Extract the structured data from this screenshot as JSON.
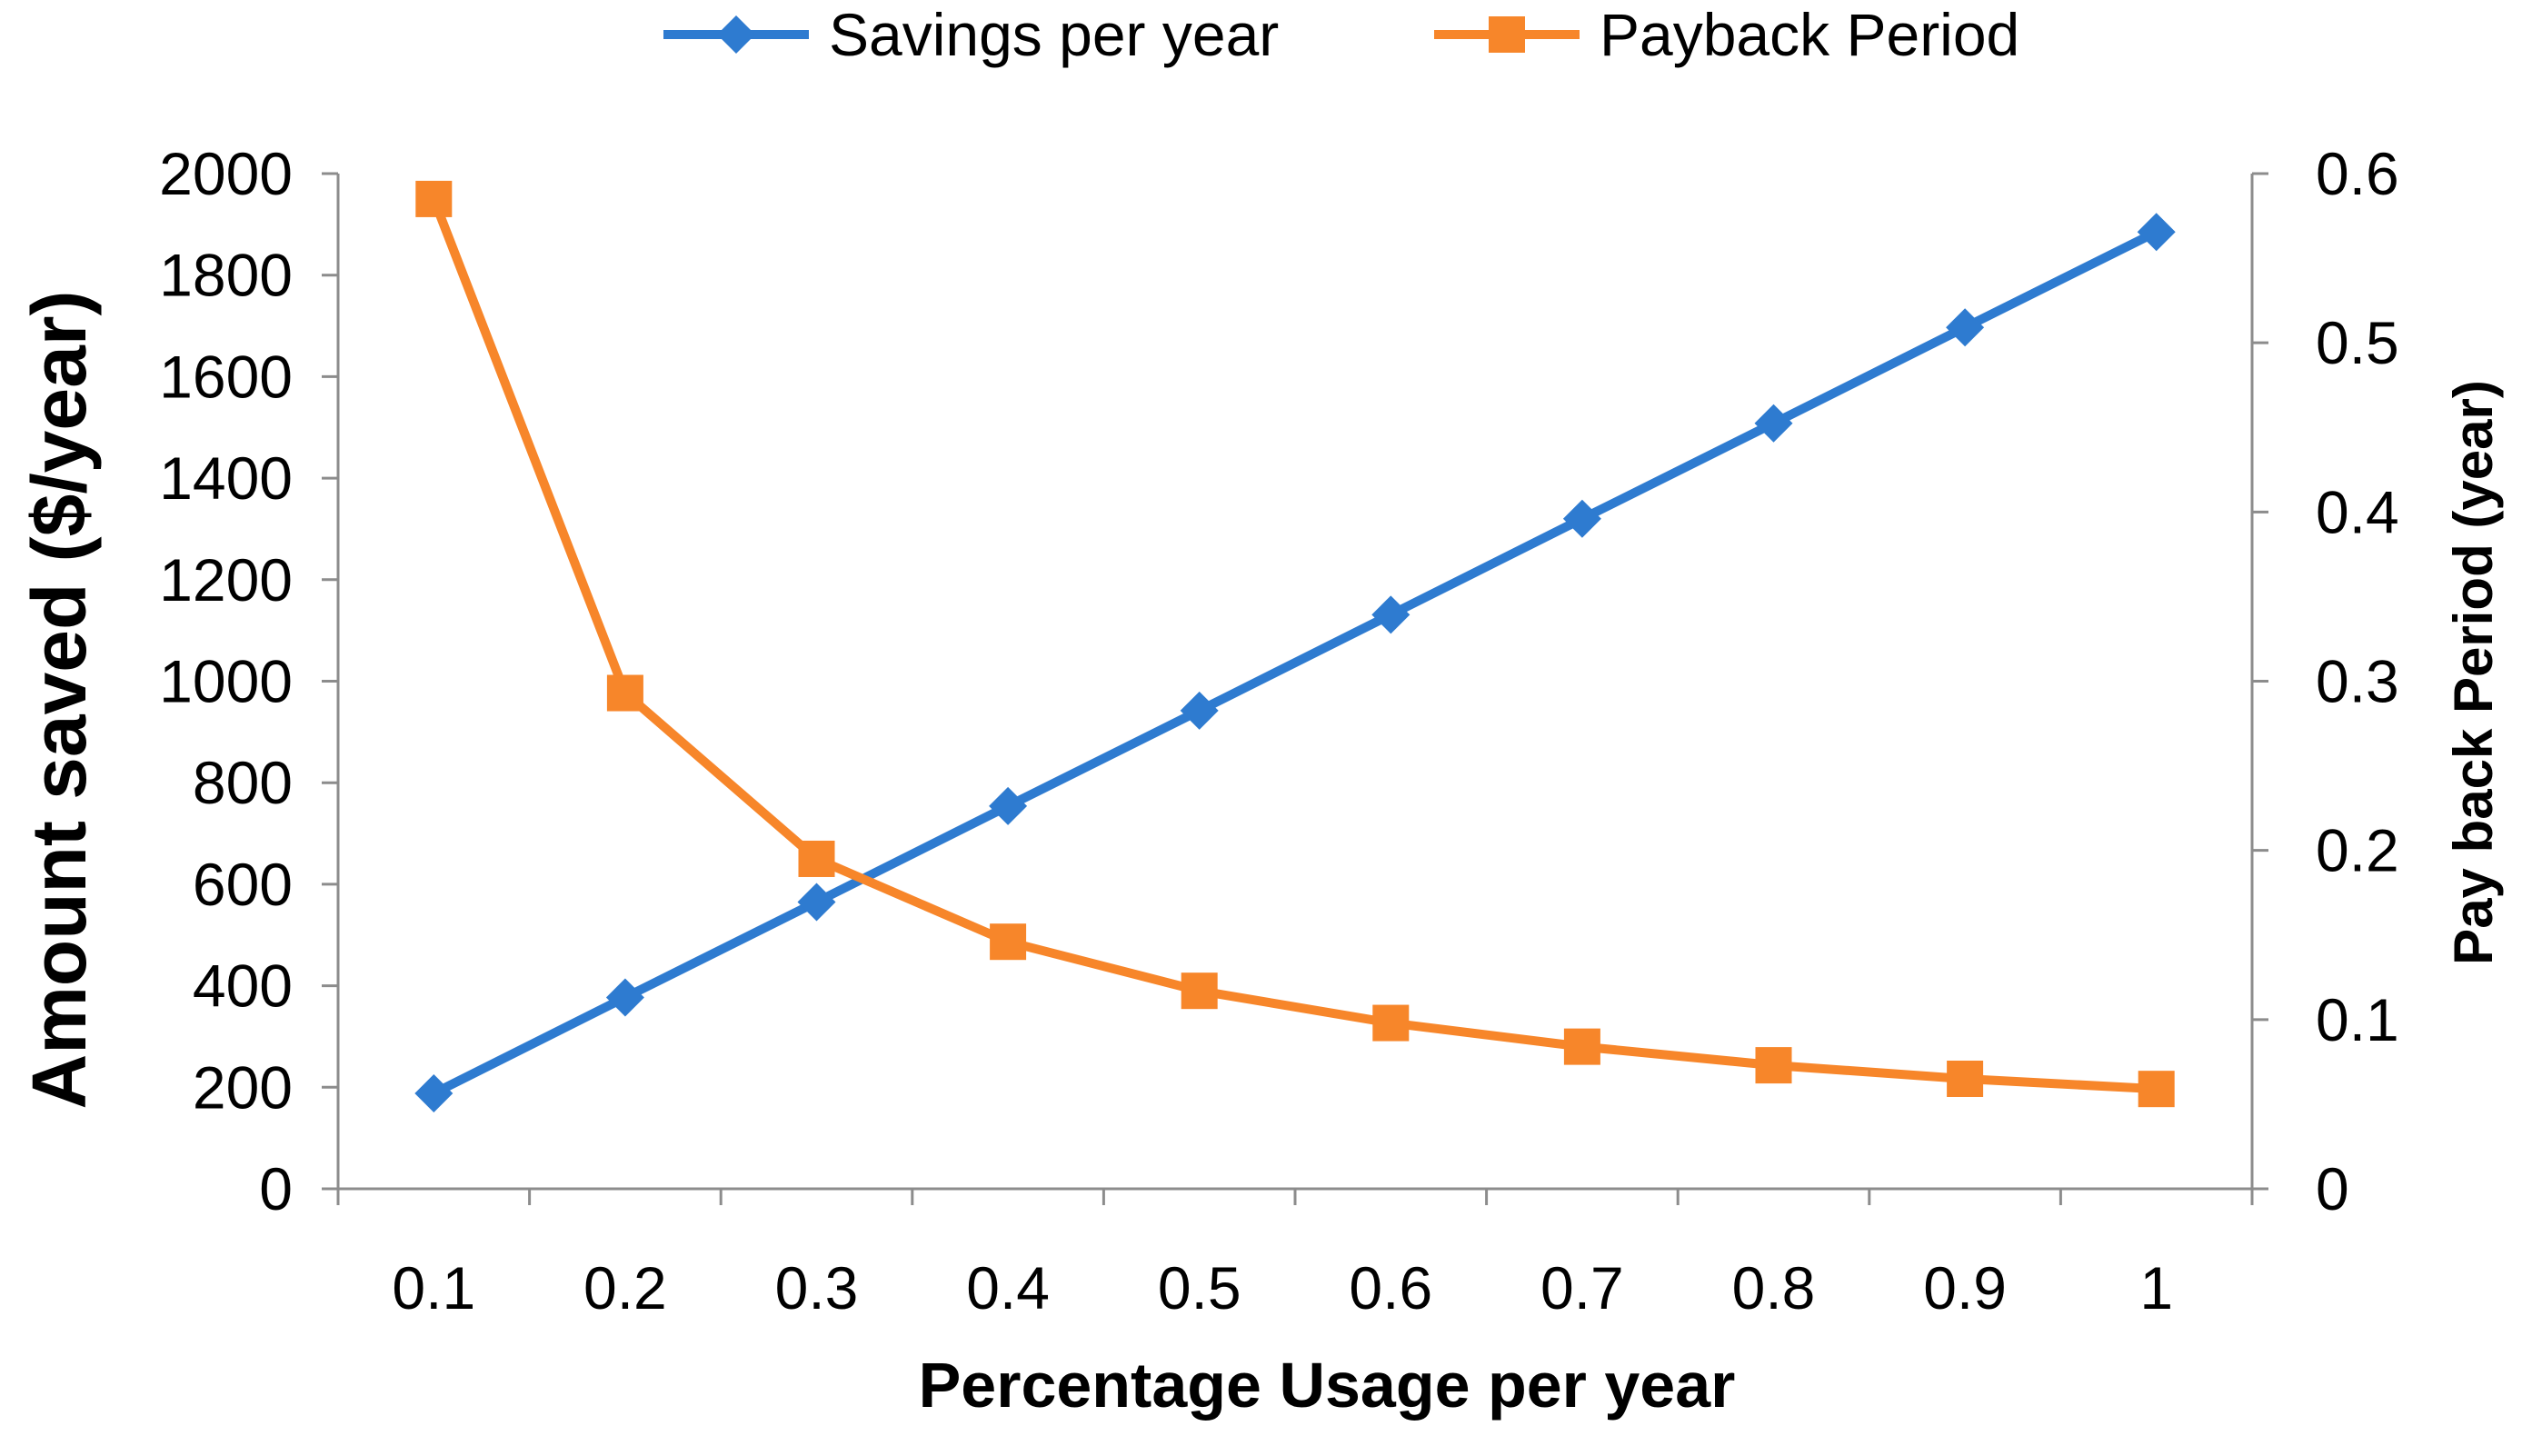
{
  "chart_data": {
    "type": "line",
    "title": "",
    "xlabel": "Percentage Usage per year",
    "ylabel": "Amount saved ($/year)",
    "y2label": "Pay back Period (year)",
    "categories": [
      "0.1",
      "0.2",
      "0.3",
      "0.4",
      "0.5",
      "0.6",
      "0.7",
      "0.8",
      "0.9",
      "1"
    ],
    "ylim": [
      0,
      2000
    ],
    "y2lim": [
      0,
      0.6
    ],
    "yticks": [
      "0",
      "200",
      "400",
      "600",
      "800",
      "1000",
      "1200",
      "1400",
      "1600",
      "1800",
      "2000"
    ],
    "y2ticks": [
      "0",
      "0.1",
      "0.2",
      "0.3",
      "0.4",
      "0.5",
      "0.6"
    ],
    "grid": false,
    "legend_position": "top-center",
    "series": [
      {
        "name": "Savings per year",
        "axis": "left",
        "marker": "diamond",
        "color": "#2E7BD0",
        "values": [
          188,
          377,
          565,
          754,
          942,
          1131,
          1320,
          1508,
          1697,
          1885
        ]
      },
      {
        "name": "Payback Period",
        "axis": "right",
        "marker": "square",
        "color": "#F7862A",
        "values": [
          0.585,
          0.293,
          0.195,
          0.146,
          0.117,
          0.098,
          0.084,
          0.073,
          0.065,
          0.059
        ]
      }
    ]
  }
}
